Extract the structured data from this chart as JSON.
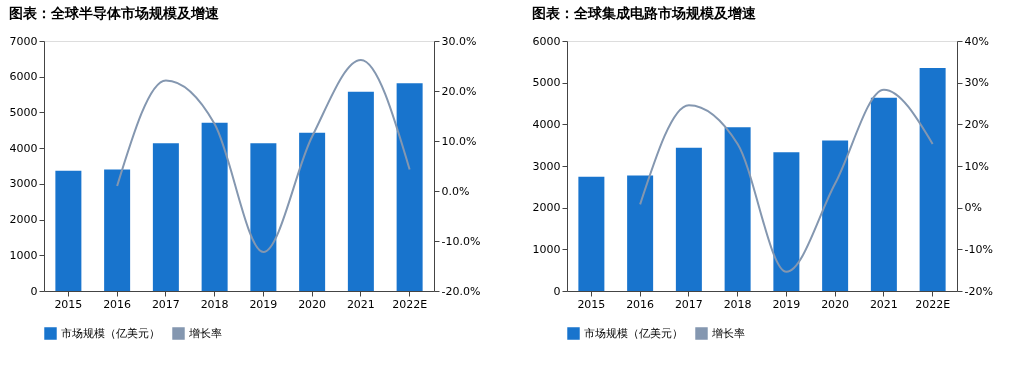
{
  "chart_data": [
    {
      "type": "bar",
      "title": "图表：全球半导体市场规模及增速",
      "categories": [
        "2015",
        "2016",
        "2017",
        "2018",
        "2019",
        "2020",
        "2021",
        "2022E"
      ],
      "series": [
        {
          "name": "市场规模（亿美元）",
          "color": "#1874cd",
          "values": [
            3370,
            3400,
            4140,
            4710,
            4140,
            4430,
            5580,
            5820
          ]
        },
        {
          "name": "增长率",
          "color": "#8497b0",
          "type": "line",
          "axis": "y2",
          "values": [
            null,
            1.0,
            22.1,
            13.4,
            -12.2,
            10.9,
            26.2,
            4.3
          ]
        }
      ],
      "ylim": [
        0,
        7000
      ],
      "yticks": [
        0,
        1000,
        2000,
        3000,
        4000,
        5000,
        6000,
        7000
      ],
      "y2lim": [
        -20,
        30
      ],
      "y2ticks": [
        {
          "value": -20,
          "label": "-20.0%"
        },
        {
          "value": -10,
          "label": "-10.0%"
        },
        {
          "value": 0,
          "label": "0.0%"
        },
        {
          "value": 10,
          "label": "10.0%"
        },
        {
          "value": 20,
          "label": "20.0%"
        },
        {
          "value": 30,
          "label": "30.0%"
        }
      ],
      "legend": "bottom",
      "grid": false
    },
    {
      "type": "bar",
      "title": "图表：全球集成电路市场规模及增速",
      "categories": [
        "2015",
        "2016",
        "2017",
        "2018",
        "2019",
        "2020",
        "2021",
        "2022E"
      ],
      "series": [
        {
          "name": "市场规模（亿美元）",
          "color": "#1874cd",
          "values": [
            2740,
            2770,
            3440,
            3930,
            3330,
            3610,
            4640,
            5350
          ]
        },
        {
          "name": "增长率",
          "color": "#8497b0",
          "type": "line",
          "axis": "y2",
          "values": [
            null,
            0.8,
            24.6,
            15.3,
            -15.4,
            5.8,
            28.3,
            15.3
          ]
        }
      ],
      "ylim": [
        0,
        6000
      ],
      "yticks": [
        0,
        1000,
        2000,
        3000,
        4000,
        5000,
        6000
      ],
      "y2lim": [
        -20,
        40
      ],
      "y2ticks": [
        {
          "value": -20,
          "label": "-20%"
        },
        {
          "value": -10,
          "label": "-10%"
        },
        {
          "value": 0,
          "label": "0%"
        },
        {
          "value": 10,
          "label": "10%"
        },
        {
          "value": 20,
          "label": "20%"
        },
        {
          "value": 30,
          "label": "30%"
        },
        {
          "value": 40,
          "label": "40%"
        }
      ],
      "legend": "bottom",
      "grid": false
    }
  ]
}
